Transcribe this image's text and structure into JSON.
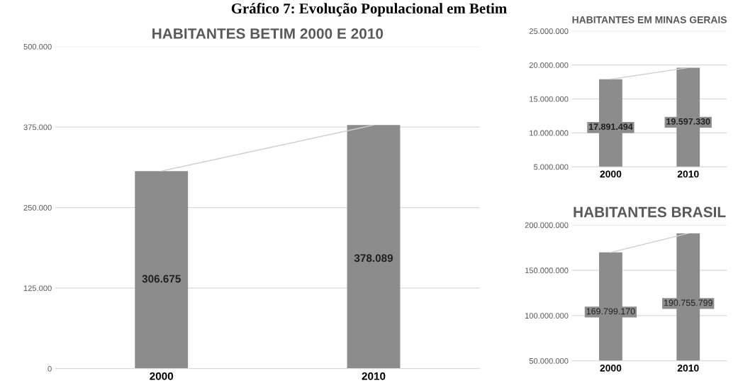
{
  "chart_data": [
    {
      "type": "bar",
      "title": "HABITANTES BETIM 2000 E 2010",
      "annotations": [
        "Gráfico 7: Evolução Populacional em Betim"
      ],
      "categories": [
        "2000",
        "2010"
      ],
      "series": [
        {
          "color": "#8c8c8c",
          "values": [
            306675,
            378089
          ],
          "value_labels": [
            "306.675",
            "378.089"
          ]
        },
        {
          "type": "line",
          "color": "#cfcfcf",
          "values": [
            306675,
            378089
          ]
        }
      ],
      "ylim": [
        0,
        500000
      ],
      "yticks": [
        {
          "value": 0,
          "label": "0"
        },
        {
          "value": 125000,
          "label": "125.000"
        },
        {
          "value": 250000,
          "label": "250.000"
        },
        {
          "value": 375000,
          "label": "375.000"
        },
        {
          "value": 500000,
          "label": "500.000"
        }
      ],
      "grid": "y"
    },
    {
      "type": "bar",
      "title": "HABITANTES EM MINAS GERAIS",
      "categories": [
        "2000",
        "2010"
      ],
      "series": [
        {
          "color": "#8c8c8c",
          "values": [
            17891494,
            19597330
          ],
          "value_labels": [
            "17.891.494",
            "19.597.330"
          ]
        },
        {
          "type": "line",
          "color": "#cfcfcf",
          "values": [
            17891494,
            19597330
          ]
        }
      ],
      "ylim": [
        5000000,
        25000000
      ],
      "yticks": [
        {
          "value": 5000000,
          "label": "5.000.000"
        },
        {
          "value": 10000000,
          "label": "10.000.000"
        },
        {
          "value": 15000000,
          "label": "15.000.000"
        },
        {
          "value": 20000000,
          "label": "20.000.000"
        },
        {
          "value": 25000000,
          "label": "25.000.000"
        }
      ],
      "grid": "y"
    },
    {
      "type": "bar",
      "title": "HABITANTES BRASIL",
      "categories": [
        "2000",
        "2010"
      ],
      "series": [
        {
          "color": "#8c8c8c",
          "values": [
            169799170,
            190755799
          ],
          "value_labels": [
            "169.799.170",
            "190.755.799"
          ]
        },
        {
          "type": "line",
          "color": "#cfcfcf",
          "values": [
            169799170,
            190755799
          ]
        }
      ],
      "ylim": [
        50000000,
        200000000
      ],
      "yticks": [
        {
          "value": 50000000,
          "label": "50.000.000"
        },
        {
          "value": 100000000,
          "label": "100.000.000"
        },
        {
          "value": 150000000,
          "label": "150.000.000"
        },
        {
          "value": 200000000,
          "label": "200.000.000"
        }
      ],
      "grid": "y"
    }
  ]
}
